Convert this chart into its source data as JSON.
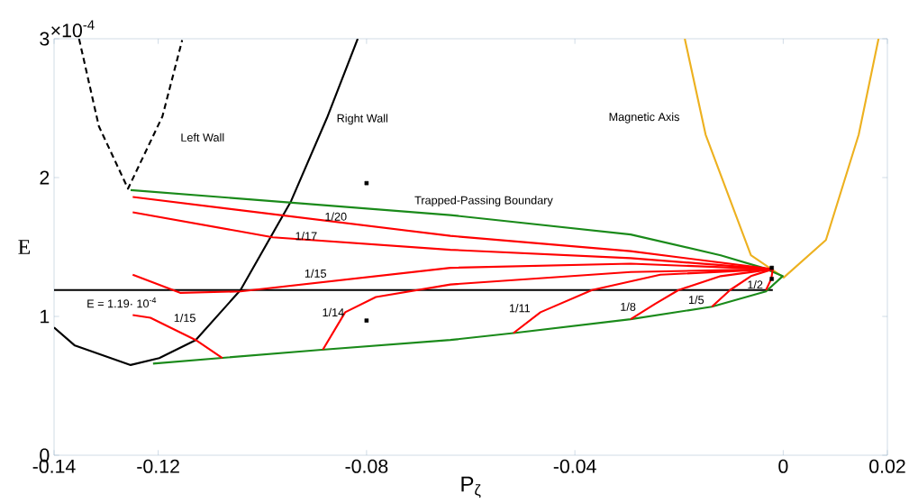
{
  "chart_data": {
    "type": "line",
    "xlabel": "P$_{ζ}$",
    "ylabel": "E",
    "xlim": [
      -0.14,
      0.02
    ],
    "ylim": [
      0,
      3
    ],
    "xticks": [
      -0.14,
      -0.12,
      -0.08,
      -0.04,
      0,
      0.02
    ],
    "yticks": [
      0,
      1,
      2,
      3
    ],
    "series": [
      {
        "name": "Left Wall",
        "color": "#000000",
        "line_style": "dashed",
        "x": [
          -0.1352,
          -0.1314,
          -0.1258,
          -0.1192,
          -0.1154
        ],
        "values": [
          3,
          2.37,
          1.92,
          2.44,
          2.99
        ]
      },
      {
        "name": "Right Wall",
        "color": "#000000",
        "x": [
          -0.14,
          -0.136,
          -0.1253,
          -0.1198,
          -0.1128,
          -0.1042,
          -0.0945,
          -0.0876,
          -0.0817
        ],
        "values": [
          0.92,
          0.79,
          0.65,
          0.7,
          0.83,
          1.19,
          1.83,
          2.43,
          3
        ]
      },
      {
        "name": "Magnetic Axis",
        "color": "#edb120",
        "x": [
          -0.0189,
          -0.0149,
          -0.0062,
          0.0001,
          0.0082,
          0.0145,
          0.0183
        ],
        "values": [
          3,
          2.31,
          1.44,
          1.28,
          1.55,
          2.31,
          3
        ]
      },
      {
        "name": "E = 1.19· 10$^{-4}$",
        "color": "#000000",
        "x": [
          -0.14,
          -0.002
        ],
        "values": [
          1.19,
          1.19
        ]
      },
      {
        "name": "Trapped-Passing Boundary",
        "color": "#1a8a1a",
        "x": [
          -0.1253,
          -0.0639,
          -0.0293,
          -0.012,
          -0.0039,
          -0.0001,
          -0.0033,
          -0.0137,
          -0.0293,
          -0.0518,
          -0.0639,
          -0.0886,
          -0.121
        ],
        "values": [
          1.91,
          1.73,
          1.59,
          1.44,
          1.35,
          1.29,
          1.18,
          1.07,
          0.98,
          0.88,
          0.83,
          0.76,
          0.66
        ]
      },
      {
        "name": "1/20",
        "color": "#ff0000",
        "x": [
          -0.1249,
          -0.0639,
          -0.0293,
          -0.002
        ],
        "values": [
          1.86,
          1.58,
          1.47,
          1.34
        ]
      },
      {
        "name": "1/17",
        "color": "#ff0000",
        "x": [
          -0.1249,
          -0.098,
          -0.0639,
          -0.0293,
          -0.002
        ],
        "values": [
          1.75,
          1.57,
          1.48,
          1.42,
          1.34
        ]
      },
      {
        "name": "1/15",
        "color": "#ff0000",
        "x": [
          -0.1249,
          -0.1158,
          -0.1042,
          -0.0639,
          -0.0293,
          -0.002
        ],
        "values": [
          1.3,
          1.17,
          1.18,
          1.35,
          1.38,
          1.34
        ]
      },
      {
        "name": "1/15",
        "color": "#ff0000",
        "x": [
          -0.1249,
          -0.1215,
          -0.1128,
          -0.1077
        ],
        "values": [
          1.01,
          0.99,
          0.83,
          0.7
        ]
      },
      {
        "name": "1/14",
        "color": "#ff0000",
        "x": [
          -0.0884,
          -0.0841,
          -0.0782,
          -0.0639,
          -0.0293,
          -0.002
        ],
        "values": [
          0.76,
          1.03,
          1.14,
          1.23,
          1.32,
          1.34
        ]
      },
      {
        "name": "1/11",
        "color": "#ff0000",
        "x": [
          -0.0518,
          -0.0466,
          -0.0367,
          -0.0236,
          -0.002
        ],
        "values": [
          0.88,
          1.03,
          1.19,
          1.3,
          1.34
        ]
      },
      {
        "name": "1/8",
        "color": "#ff0000",
        "x": [
          -0.0293,
          -0.0246,
          -0.0201,
          -0.012,
          -0.002
        ],
        "values": [
          0.98,
          1.09,
          1.19,
          1.29,
          1.34
        ]
      },
      {
        "name": "1/5",
        "color": "#ff0000",
        "x": [
          -0.0137,
          -0.0102,
          -0.0062,
          -0.002
        ],
        "values": [
          1.07,
          1.19,
          1.29,
          1.34
        ]
      },
      {
        "name": "1/2",
        "color": "#ff0000",
        "x": [
          -0.0033,
          -0.0023,
          -0.002
        ],
        "values": [
          1.19,
          1.27,
          1.34
        ]
      },
      {
        "type": "scatter",
        "marker": "square",
        "color": "#000000",
        "x": [
          -0.08,
          -0.08,
          -0.0022,
          -0.0022
        ],
        "values": [
          1.96,
          0.97,
          1.35,
          1.27
        ]
      }
    ],
    "annotations": [
      "×10$^{-4}$"
    ]
  }
}
